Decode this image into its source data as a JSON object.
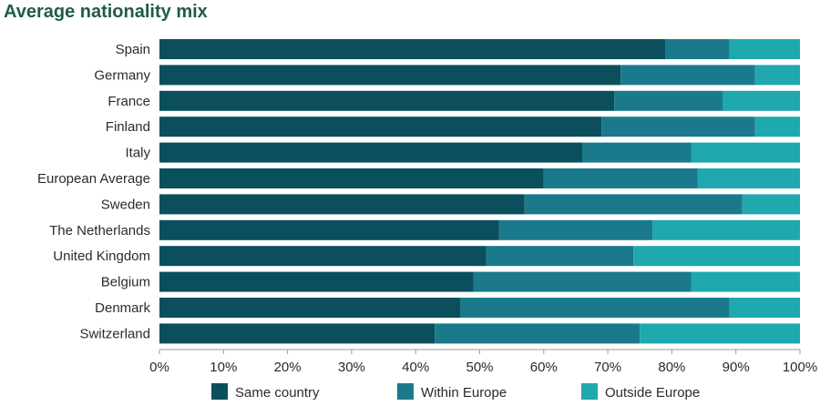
{
  "chart_data": {
    "type": "bar",
    "orientation": "horizontal",
    "stacked": true,
    "title": "Average nationality mix",
    "categories": [
      "Spain",
      "Germany",
      "France",
      "Finland",
      "Italy",
      "European Average",
      "Sweden",
      "The Netherlands",
      "United Kingdom",
      "Belgium",
      "Denmark",
      "Switzerland"
    ],
    "series": [
      {
        "name": "Same country",
        "color": "#0b4f5c",
        "values": [
          79,
          72,
          71,
          69,
          66,
          60,
          57,
          53,
          51,
          49,
          47,
          43
        ]
      },
      {
        "name": "Within Europe",
        "color": "#1a7a8c",
        "values": [
          10,
          21,
          17,
          24,
          17,
          24,
          34,
          24,
          23,
          34,
          42,
          32
        ]
      },
      {
        "name": "Outside Europe",
        "color": "#1fa8ad",
        "values": [
          11,
          7,
          12,
          7,
          17,
          16,
          9,
          23,
          26,
          17,
          11,
          25
        ]
      }
    ],
    "xlim": [
      0,
      100
    ],
    "xticks": [
      "0%",
      "10%",
      "20%",
      "30%",
      "40%",
      "50%",
      "60%",
      "70%",
      "80%",
      "90%",
      "100%"
    ],
    "grid": false,
    "legend_position": "bottom"
  }
}
